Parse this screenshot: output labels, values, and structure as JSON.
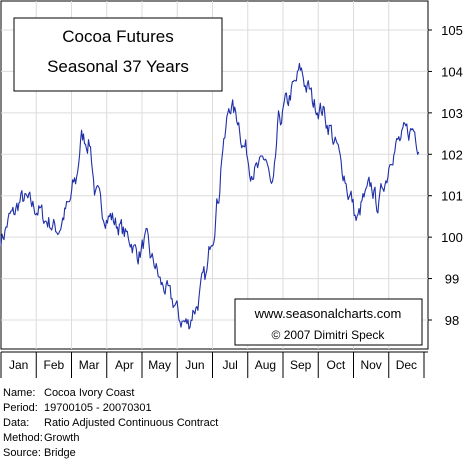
{
  "chart_data": {
    "type": "line",
    "title": "Cocoa Futures",
    "subtitle": "Seasonal 37 Years",
    "watermark": {
      "site": "www.seasonalcharts.com",
      "copyright": "© 2007  Dimitri Speck"
    },
    "months": [
      "Jan",
      "Feb",
      "Mar",
      "Apr",
      "May",
      "Jun",
      "Jul",
      "Aug",
      "Sep",
      "Oct",
      "Nov",
      "Dec"
    ],
    "ylim": [
      97.3,
      105.7
    ],
    "yticks": [
      98,
      99,
      100,
      101,
      102,
      103,
      104,
      105
    ],
    "grid": true,
    "line_color": "#1f2fa8",
    "series": [
      {
        "x": [
          0.0,
          0.3,
          0.6,
          1.0,
          1.3,
          1.6,
          1.9,
          2.1,
          2.3,
          2.5,
          2.7,
          2.9,
          3.1,
          3.3,
          3.6,
          3.9,
          4.1,
          4.3,
          4.6,
          4.9,
          5.1,
          5.3,
          5.5,
          5.8,
          6.0,
          6.15,
          6.3,
          6.5,
          6.7,
          6.9,
          7.1,
          7.3,
          7.5,
          7.7,
          7.9,
          8.1,
          8.3,
          8.5,
          8.7,
          8.9,
          9.1,
          9.3,
          9.5,
          9.7,
          9.9,
          10.1,
          10.3,
          10.5,
          10.7,
          10.9,
          11.1,
          11.3,
          11.5,
          11.7,
          11.85
        ],
        "values": [
          100.0,
          100.5,
          100.9,
          100.7,
          100.4,
          100.2,
          100.7,
          101.3,
          102.4,
          102.3,
          101.0,
          100.6,
          100.5,
          100.3,
          100.0,
          99.6,
          99.9,
          99.4,
          98.8,
          98.4,
          98.0,
          97.9,
          98.3,
          99.0,
          100.1,
          100.9,
          102.2,
          103.2,
          102.9,
          102.2,
          101.7,
          101.6,
          101.9,
          101.1,
          102.8,
          103.2,
          103.6,
          104.0,
          103.6,
          103.2,
          103.1,
          102.7,
          102.2,
          101.6,
          101.0,
          100.4,
          100.9,
          101.2,
          100.8,
          101.4,
          102.1,
          102.3,
          102.5,
          102.6,
          102.3
        ]
      }
    ]
  },
  "info": {
    "name_label": "Name:",
    "name_value": "Cocoa Ivory Coast",
    "period_label": "Period:",
    "period_value": "19700105 - 20070301",
    "data_label": "Data:",
    "data_value": "Ratio Adjusted Continuous Contract",
    "method_label": "Method:",
    "method_value": "Growth",
    "source_label": "Source:",
    "source_value": "Bridge"
  }
}
